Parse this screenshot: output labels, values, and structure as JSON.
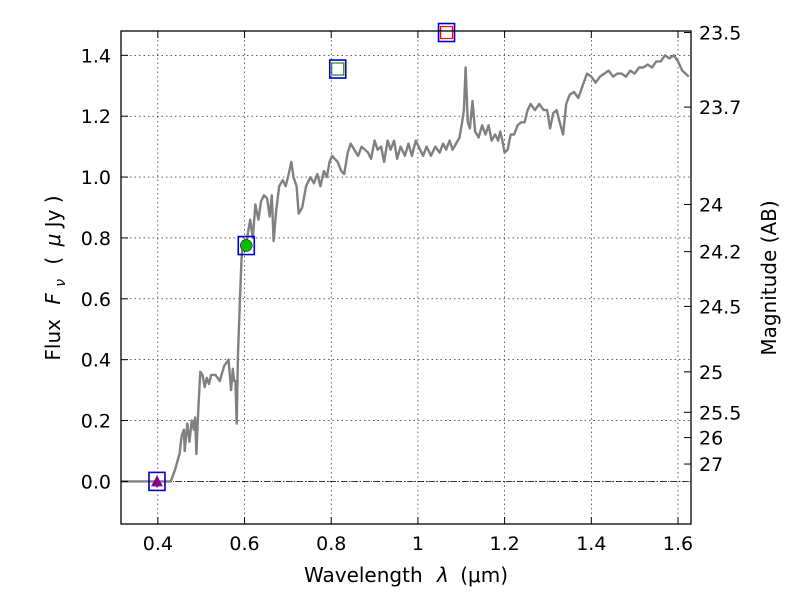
{
  "chart_data": {
    "type": "line",
    "xlabel_text": "Wavelength",
    "xlabel_symbol": "λ",
    "xlabel_unit": "(μm)",
    "ylabel_text": "Flux",
    "ylabel_symbol": "F",
    "ylabel_sub": "ν",
    "ylabel_unit_pre": "(",
    "ylabel_unit_mu": "μ",
    "ylabel_unit_post": "Jy )",
    "y2label": "Magnitude (AB)",
    "xlim": [
      0.315,
      1.63
    ],
    "ylim": [
      -0.14,
      1.48
    ],
    "grid": true,
    "x_ticks": [
      {
        "value": 0.4,
        "label": "0.4"
      },
      {
        "value": 0.6,
        "label": "0.6"
      },
      {
        "value": 0.8,
        "label": "0.8"
      },
      {
        "value": 1.0,
        "label": "1"
      },
      {
        "value": 1.2,
        "label": "1.2"
      },
      {
        "value": 1.4,
        "label": "1.4"
      },
      {
        "value": 1.6,
        "label": "1.6"
      }
    ],
    "y_ticks": [
      {
        "value": 0.0,
        "label": "0.0"
      },
      {
        "value": 0.2,
        "label": "0.2"
      },
      {
        "value": 0.4,
        "label": "0.4"
      },
      {
        "value": 0.6,
        "label": "0.6"
      },
      {
        "value": 0.8,
        "label": "0.8"
      },
      {
        "value": 1.0,
        "label": "1.0"
      },
      {
        "value": 1.2,
        "label": "1.2"
      },
      {
        "value": 1.4,
        "label": "1.4"
      }
    ],
    "y2_ticks": [
      {
        "flux": 1.475,
        "label": "23.5"
      },
      {
        "flux": 1.23,
        "label": "23.7"
      },
      {
        "flux": 0.91,
        "label": "24"
      },
      {
        "flux": 0.755,
        "label": "24.2"
      },
      {
        "flux": 0.575,
        "label": "24.5"
      },
      {
        "flux": 0.36,
        "label": "25"
      },
      {
        "flux": 0.227,
        "label": "25.5"
      },
      {
        "flux": 0.144,
        "label": "26"
      },
      {
        "flux": 0.057,
        "label": "27"
      }
    ],
    "series": [
      {
        "kind": "sed_model",
        "color": "#808080",
        "points": [
          [
            0.315,
            0.0
          ],
          [
            0.43,
            0.0
          ],
          [
            0.44,
            0.04
          ],
          [
            0.45,
            0.09
          ],
          [
            0.455,
            0.15
          ],
          [
            0.46,
            0.17
          ],
          [
            0.462,
            0.1
          ],
          [
            0.468,
            0.19
          ],
          [
            0.473,
            0.13
          ],
          [
            0.478,
            0.2
          ],
          [
            0.483,
            0.17
          ],
          [
            0.486,
            0.21
          ],
          [
            0.489,
            0.09
          ],
          [
            0.493,
            0.23
          ],
          [
            0.498,
            0.36
          ],
          [
            0.503,
            0.35
          ],
          [
            0.508,
            0.31
          ],
          [
            0.513,
            0.34
          ],
          [
            0.518,
            0.32
          ],
          [
            0.523,
            0.35
          ],
          [
            0.533,
            0.35
          ],
          [
            0.543,
            0.33
          ],
          [
            0.553,
            0.38
          ],
          [
            0.563,
            0.4
          ],
          [
            0.569,
            0.3
          ],
          [
            0.573,
            0.37
          ],
          [
            0.576,
            0.33
          ],
          [
            0.579,
            0.33
          ],
          [
            0.582,
            0.19
          ],
          [
            0.585,
            0.42
          ],
          [
            0.59,
            0.62
          ],
          [
            0.593,
            0.73
          ],
          [
            0.597,
            0.79
          ],
          [
            0.602,
            0.77
          ],
          [
            0.607,
            0.81
          ],
          [
            0.613,
            0.86
          ],
          [
            0.619,
            0.8
          ],
          [
            0.625,
            0.91
          ],
          [
            0.632,
            0.86
          ],
          [
            0.638,
            0.92
          ],
          [
            0.645,
            0.94
          ],
          [
            0.652,
            0.93
          ],
          [
            0.658,
            0.87
          ],
          [
            0.663,
            0.94
          ],
          [
            0.667,
            0.79
          ],
          [
            0.673,
            0.89
          ],
          [
            0.68,
            0.97
          ],
          [
            0.688,
            0.99
          ],
          [
            0.695,
            0.97
          ],
          [
            0.702,
            1.01
          ],
          [
            0.708,
            1.05
          ],
          [
            0.713,
            1.0
          ],
          [
            0.72,
            0.97
          ],
          [
            0.725,
            0.88
          ],
          [
            0.733,
            0.9
          ],
          [
            0.742,
            0.97
          ],
          [
            0.752,
            1.0
          ],
          [
            0.76,
            0.98
          ],
          [
            0.768,
            1.01
          ],
          [
            0.775,
            0.97
          ],
          [
            0.783,
            1.02
          ],
          [
            0.79,
            1.0
          ],
          [
            0.796,
            1.05
          ],
          [
            0.802,
            1.07
          ],
          [
            0.808,
            1.06
          ],
          [
            0.815,
            1.05
          ],
          [
            0.823,
            1.02
          ],
          [
            0.83,
            1.01
          ],
          [
            0.838,
            1.08
          ],
          [
            0.845,
            1.11
          ],
          [
            0.853,
            1.09
          ],
          [
            0.862,
            1.07
          ],
          [
            0.87,
            1.1
          ],
          [
            0.878,
            1.09
          ],
          [
            0.885,
            1.08
          ],
          [
            0.892,
            1.06
          ],
          [
            0.9,
            1.12
          ],
          [
            0.907,
            1.09
          ],
          [
            0.915,
            1.1
          ],
          [
            0.922,
            1.05
          ],
          [
            0.93,
            1.12
          ],
          [
            0.937,
            1.09
          ],
          [
            0.945,
            1.12
          ],
          [
            0.952,
            1.06
          ],
          [
            0.96,
            1.1
          ],
          [
            0.97,
            1.07
          ],
          [
            0.978,
            1.11
          ],
          [
            0.986,
            1.07
          ],
          [
            0.995,
            1.12
          ],
          [
            1.005,
            1.09
          ],
          [
            1.012,
            1.07
          ],
          [
            1.02,
            1.1
          ],
          [
            1.03,
            1.07
          ],
          [
            1.04,
            1.1
          ],
          [
            1.05,
            1.08
          ],
          [
            1.058,
            1.11
          ],
          [
            1.065,
            1.09
          ],
          [
            1.073,
            1.12
          ],
          [
            1.08,
            1.09
          ],
          [
            1.088,
            1.11
          ],
          [
            1.096,
            1.13
          ],
          [
            1.102,
            1.18
          ],
          [
            1.106,
            1.22
          ],
          [
            1.11,
            1.36
          ],
          [
            1.115,
            1.18
          ],
          [
            1.12,
            1.16
          ],
          [
            1.126,
            1.25
          ],
          [
            1.132,
            1.15
          ],
          [
            1.14,
            1.13
          ],
          [
            1.148,
            1.17
          ],
          [
            1.156,
            1.14
          ],
          [
            1.163,
            1.17
          ],
          [
            1.17,
            1.12
          ],
          [
            1.178,
            1.14
          ],
          [
            1.185,
            1.12
          ],
          [
            1.19,
            1.15
          ],
          [
            1.195,
            1.12
          ],
          [
            1.2,
            1.08
          ],
          [
            1.207,
            1.09
          ],
          [
            1.214,
            1.14
          ],
          [
            1.222,
            1.14
          ],
          [
            1.23,
            1.17
          ],
          [
            1.238,
            1.18
          ],
          [
            1.246,
            1.18
          ],
          [
            1.253,
            1.22
          ],
          [
            1.26,
            1.24
          ],
          [
            1.27,
            1.22
          ],
          [
            1.28,
            1.24
          ],
          [
            1.29,
            1.22
          ],
          [
            1.298,
            1.22
          ],
          [
            1.305,
            1.16
          ],
          [
            1.312,
            1.21
          ],
          [
            1.32,
            1.22
          ],
          [
            1.327,
            1.18
          ],
          [
            1.335,
            1.14
          ],
          [
            1.342,
            1.24
          ],
          [
            1.35,
            1.27
          ],
          [
            1.36,
            1.28
          ],
          [
            1.37,
            1.26
          ],
          [
            1.38,
            1.3
          ],
          [
            1.39,
            1.34
          ],
          [
            1.4,
            1.33
          ],
          [
            1.41,
            1.31
          ],
          [
            1.42,
            1.33
          ],
          [
            1.43,
            1.34
          ],
          [
            1.44,
            1.35
          ],
          [
            1.45,
            1.33
          ],
          [
            1.46,
            1.34
          ],
          [
            1.47,
            1.34
          ],
          [
            1.48,
            1.33
          ],
          [
            1.49,
            1.35
          ],
          [
            1.5,
            1.34
          ],
          [
            1.51,
            1.36
          ],
          [
            1.52,
            1.36
          ],
          [
            1.53,
            1.37
          ],
          [
            1.54,
            1.36
          ],
          [
            1.55,
            1.38
          ],
          [
            1.56,
            1.38
          ],
          [
            1.57,
            1.4
          ],
          [
            1.58,
            1.39
          ],
          [
            1.59,
            1.4
          ],
          [
            1.6,
            1.38
          ],
          [
            1.61,
            1.35
          ],
          [
            1.625,
            1.33
          ]
        ]
      }
    ],
    "photometry": [
      {
        "x": 0.398,
        "y": 0.0,
        "box": "#0000cc",
        "marker": "triangle",
        "color": "#8b008b",
        "err": 0.02
      },
      {
        "x": 0.604,
        "y": 0.775,
        "box": "#0000cc",
        "marker": "circle",
        "color": "#00bb00"
      },
      {
        "x": 0.815,
        "y": 1.355,
        "box": "#0000cc",
        "marker": "square",
        "color": "#228b22"
      },
      {
        "x": 1.066,
        "y": 1.475,
        "box": "#0000cc",
        "marker": "square",
        "color": "#ff0000"
      }
    ]
  }
}
